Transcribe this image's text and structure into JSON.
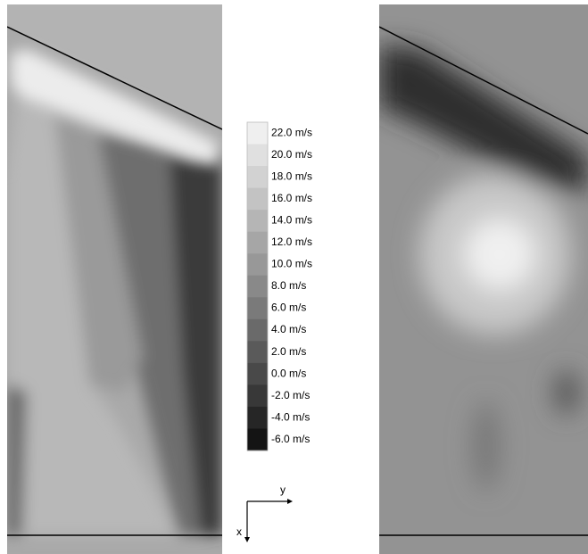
{
  "colorbar": {
    "levels": [
      {
        "label": "22.0 m/s",
        "color": "#efefef"
      },
      {
        "label": "20.0 m/s",
        "color": "#e0e0e0"
      },
      {
        "label": "18.0 m/s",
        "color": "#d2d2d2"
      },
      {
        "label": "16.0 m/s",
        "color": "#c3c3c3"
      },
      {
        "label": "14.0 m/s",
        "color": "#b5b5b5"
      },
      {
        "label": "12.0 m/s",
        "color": "#a6a6a6"
      },
      {
        "label": "10.0 m/s",
        "color": "#989898"
      },
      {
        "label": "8.0 m/s",
        "color": "#898989"
      },
      {
        "label": "6.0 m/s",
        "color": "#7a7a7a"
      },
      {
        "label": "4.0 m/s",
        "color": "#6a6a6a"
      },
      {
        "label": "2.0 m/s",
        "color": "#5a5a5a"
      },
      {
        "label": "0.0 m/s",
        "color": "#494949"
      },
      {
        "label": "-2.0 m/s",
        "color": "#383838"
      },
      {
        "label": "-4.0 m/s",
        "color": "#262626"
      },
      {
        "label": "-6.0 m/s",
        "color": "#141414"
      }
    ]
  },
  "axes": {
    "horizontal": "y",
    "vertical": "x"
  }
}
